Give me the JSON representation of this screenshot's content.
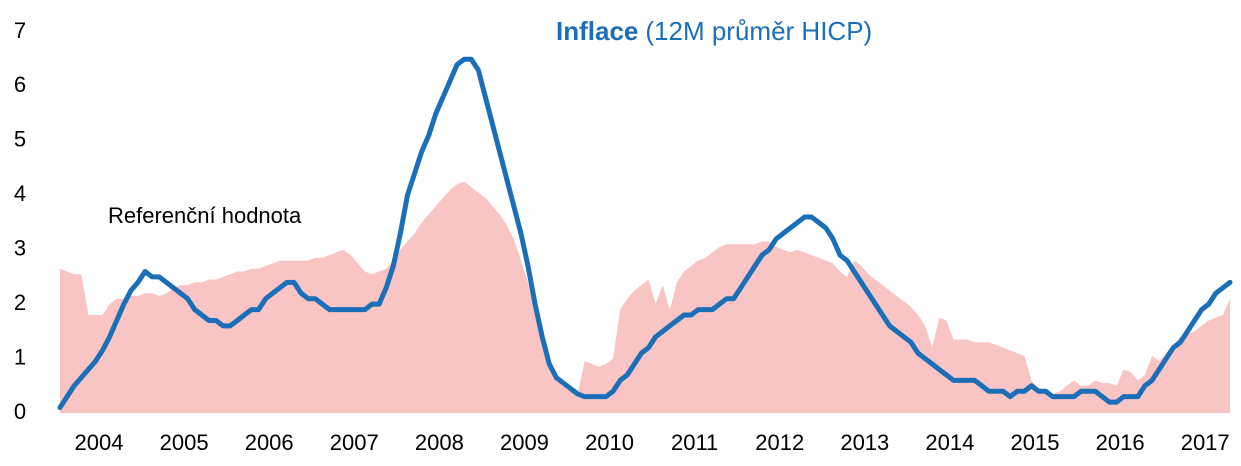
{
  "chart_data": {
    "type": "line",
    "title": "Inflace",
    "subtitle": "(12M průměr HICP)",
    "categories": [
      null,
      null,
      null,
      null,
      null,
      "2004",
      null,
      null,
      null,
      null,
      null,
      null,
      null,
      null,
      null,
      null,
      null,
      "2005",
      null,
      null,
      null,
      null,
      null,
      null,
      null,
      null,
      null,
      null,
      null,
      "2006",
      null,
      null,
      null,
      null,
      null,
      null,
      null,
      null,
      null,
      null,
      null,
      "2007",
      null,
      null,
      null,
      null,
      null,
      null,
      null,
      null,
      null,
      null,
      null,
      "2008",
      null,
      null,
      null,
      null,
      null,
      null,
      null,
      null,
      null,
      null,
      null,
      "2009",
      null,
      null,
      null,
      null,
      null,
      null,
      null,
      null,
      null,
      null,
      null,
      "2010",
      null,
      null,
      null,
      null,
      null,
      null,
      null,
      null,
      null,
      null,
      null,
      "2011",
      null,
      null,
      null,
      null,
      null,
      null,
      null,
      null,
      null,
      null,
      null,
      "2012",
      null,
      null,
      null,
      null,
      null,
      null,
      null,
      null,
      null,
      null,
      null,
      "2013",
      null,
      null,
      null,
      null,
      null,
      null,
      null,
      null,
      null,
      null,
      null,
      "2014",
      null,
      null,
      null,
      null,
      null,
      null,
      null,
      null,
      null,
      null,
      null,
      "2015",
      null,
      null,
      null,
      null,
      null,
      null,
      null,
      null,
      null,
      null,
      null,
      "2016",
      null,
      null,
      null,
      null,
      null,
      null,
      null,
      null,
      null,
      null,
      null,
      "2017",
      null,
      null,
      null,
      null
    ],
    "series": [
      {
        "name": "Referenční hodnota",
        "style": "area",
        "color": "#f9c4c4",
        "label_color": "#e8141c",
        "values": [
          2.65,
          2.6,
          2.55,
          2.55,
          1.8,
          1.8,
          1.8,
          2.0,
          2.1,
          2.1,
          2.15,
          2.15,
          2.2,
          2.2,
          2.15,
          2.2,
          2.3,
          2.35,
          2.35,
          2.4,
          2.4,
          2.45,
          2.45,
          2.5,
          2.55,
          2.6,
          2.6,
          2.65,
          2.65,
          2.7,
          2.75,
          2.8,
          2.8,
          2.8,
          2.8,
          2.8,
          2.85,
          2.85,
          2.9,
          2.95,
          3.0,
          2.9,
          2.75,
          2.6,
          2.55,
          2.6,
          2.65,
          2.8,
          3.0,
          3.15,
          3.3,
          3.5,
          3.65,
          3.8,
          3.95,
          4.1,
          4.2,
          4.25,
          4.15,
          4.05,
          3.95,
          3.8,
          3.65,
          3.45,
          3.2,
          2.8,
          2.4,
          1.9,
          1.3,
          0.95,
          0.7,
          0.5,
          0.4,
          0.35,
          0.95,
          0.9,
          0.85,
          0.9,
          1.0,
          1.9,
          2.1,
          2.25,
          2.35,
          2.45,
          2.0,
          2.35,
          1.9,
          2.4,
          2.6,
          2.7,
          2.8,
          2.85,
          2.95,
          3.05,
          3.1,
          3.1,
          3.1,
          3.1,
          3.1,
          3.15,
          3.15,
          3.05,
          3.0,
          2.95,
          3.0,
          2.95,
          2.9,
          2.85,
          2.8,
          2.75,
          2.6,
          2.5,
          2.8,
          2.7,
          2.55,
          2.45,
          2.35,
          2.25,
          2.15,
          2.05,
          1.95,
          1.8,
          1.6,
          1.2,
          1.75,
          1.7,
          1.35,
          1.35,
          1.35,
          1.3,
          1.3,
          1.3,
          1.25,
          1.2,
          1.15,
          1.1,
          1.05,
          0.6,
          0.45,
          0.4,
          0.35,
          0.4,
          0.5,
          0.6,
          0.5,
          0.5,
          0.6,
          0.55,
          0.55,
          0.5,
          0.8,
          0.75,
          0.6,
          0.7,
          1.05,
          0.95,
          1.1,
          1.25,
          1.4,
          1.45,
          1.5,
          1.6,
          1.7,
          1.75,
          1.8,
          2.1
        ]
      },
      {
        "name": "Inflace",
        "style": "line",
        "color": "#1a6fb8",
        "label_color": "#1a6fb8",
        "values": [
          0.1,
          0.3,
          0.5,
          0.65,
          0.8,
          0.95,
          1.15,
          1.4,
          1.7,
          2.0,
          2.25,
          2.4,
          2.6,
          2.5,
          2.5,
          2.4,
          2.3,
          2.2,
          2.1,
          1.9,
          1.8,
          1.7,
          1.7,
          1.6,
          1.6,
          1.7,
          1.8,
          1.9,
          1.9,
          2.1,
          2.2,
          2.3,
          2.4,
          2.4,
          2.2,
          2.1,
          2.1,
          2.0,
          1.9,
          1.9,
          1.9,
          1.9,
          1.9,
          1.9,
          2.0,
          2.0,
          2.3,
          2.7,
          3.3,
          4.0,
          4.4,
          4.8,
          5.1,
          5.5,
          5.8,
          6.1,
          6.4,
          6.5,
          6.5,
          6.3,
          5.8,
          5.3,
          4.8,
          4.3,
          3.8,
          3.3,
          2.7,
          2.0,
          1.4,
          0.9,
          0.65,
          0.55,
          0.45,
          0.35,
          0.3,
          0.3,
          0.3,
          0.3,
          0.4,
          0.6,
          0.7,
          0.9,
          1.1,
          1.2,
          1.4,
          1.5,
          1.6,
          1.7,
          1.8,
          1.8,
          1.9,
          1.9,
          1.9,
          2.0,
          2.1,
          2.1,
          2.3,
          2.5,
          2.7,
          2.9,
          3.0,
          3.2,
          3.3,
          3.4,
          3.5,
          3.6,
          3.6,
          3.5,
          3.4,
          3.2,
          2.9,
          2.8,
          2.6,
          2.4,
          2.2,
          2.0,
          1.8,
          1.6,
          1.5,
          1.4,
          1.3,
          1.1,
          1.0,
          0.9,
          0.8,
          0.7,
          0.6,
          0.6,
          0.6,
          0.6,
          0.5,
          0.4,
          0.4,
          0.4,
          0.3,
          0.4,
          0.4,
          0.5,
          0.4,
          0.4,
          0.3,
          0.3,
          0.3,
          0.3,
          0.4,
          0.4,
          0.4,
          0.3,
          0.2,
          0.2,
          0.3,
          0.3,
          0.3,
          0.5,
          0.6,
          0.8,
          1.0,
          1.2,
          1.3,
          1.5,
          1.7,
          1.9,
          2.0,
          2.2,
          2.3,
          2.4
        ]
      }
    ],
    "ylim": [
      0,
      7
    ],
    "yticks": [
      0,
      1,
      2,
      3,
      4,
      5,
      6,
      7
    ],
    "grid": false
  }
}
